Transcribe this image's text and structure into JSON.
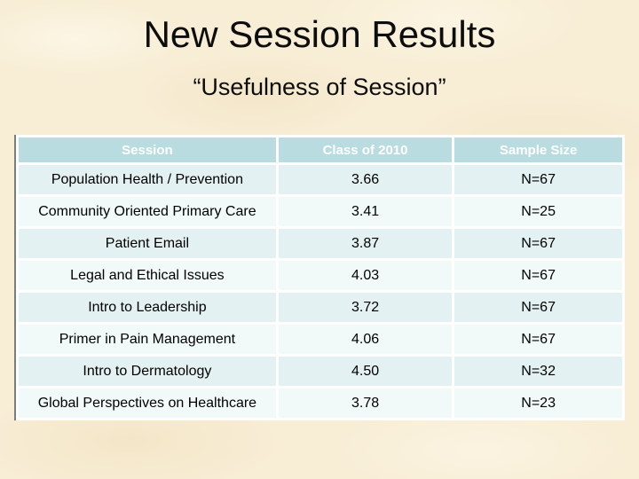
{
  "slide": {
    "title": "New Session Results",
    "subtitle": "“Usefulness of Session”"
  },
  "table": {
    "headers": [
      "Session",
      "Class of 2010",
      "Sample Size"
    ],
    "rows": [
      [
        "Population Health / Prevention",
        "3.66",
        "N=67"
      ],
      [
        "Community Oriented Primary Care",
        "3.41",
        "N=25"
      ],
      [
        "Patient Email",
        "3.87",
        "N=67"
      ],
      [
        "Legal and Ethical Issues",
        "4.03",
        "N=67"
      ],
      [
        "Intro to Leadership",
        "3.72",
        "N=67"
      ],
      [
        "Primer in Pain Management",
        "4.06",
        "N=67"
      ],
      [
        "Intro to Dermatology",
        "4.50",
        "N=32"
      ],
      [
        "Global Perspectives on Healthcare",
        "3.78",
        "N=23"
      ]
    ]
  },
  "colors": {
    "background": "#f8eed6",
    "header_bg": "#b9dce1",
    "header_text": "#ffffff",
    "row_odd": "#e4f1f2",
    "row_even": "#f2f9f9",
    "grid": "#ffffff",
    "body_text": "#000000"
  }
}
